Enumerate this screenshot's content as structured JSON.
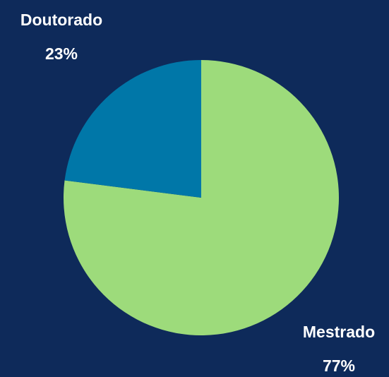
{
  "chart_data": {
    "type": "pie",
    "categories": [
      "Mestrado",
      "Doutorado"
    ],
    "values": [
      77,
      23
    ],
    "value_labels": [
      "77%",
      "23%"
    ],
    "colors": [
      "#9ddb7b",
      "#0077a8"
    ]
  }
}
